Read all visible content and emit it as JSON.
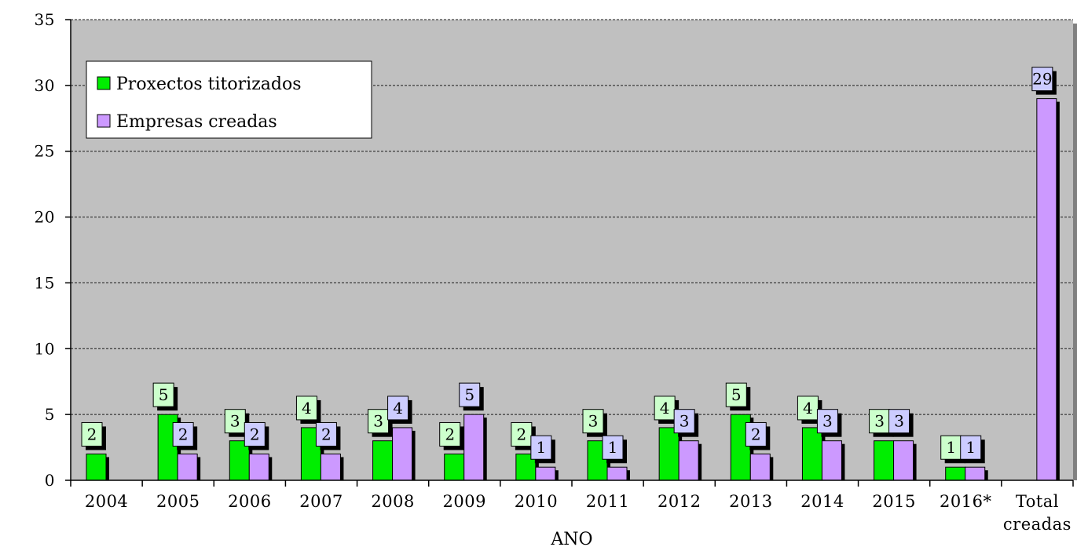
{
  "chart_data": {
    "type": "bar",
    "categories": [
      [
        "2004"
      ],
      [
        "2005"
      ],
      [
        "2006"
      ],
      [
        "2007"
      ],
      [
        "2008"
      ],
      [
        "2009"
      ],
      [
        "2010"
      ],
      [
        "2011"
      ],
      [
        "2012"
      ],
      [
        "2013"
      ],
      [
        "2014"
      ],
      [
        "2015"
      ],
      [
        "2016*"
      ],
      [
        "Total",
        "creadas"
      ]
    ],
    "series": [
      {
        "name": "Proxectos titorizados",
        "color": "#00ee00",
        "label_bg": "#ccffcc",
        "values": [
          2,
          5,
          3,
          4,
          3,
          2,
          2,
          3,
          4,
          5,
          4,
          3,
          1,
          null
        ]
      },
      {
        "name": "Empresas creadas",
        "color": "#cc99ff",
        "label_bg": "#ccccff",
        "values": [
          null,
          2,
          2,
          2,
          4,
          5,
          1,
          1,
          3,
          2,
          3,
          3,
          1,
          29
        ]
      }
    ],
    "xlabel": "ANO",
    "ylabel": "",
    "ylim": [
      0,
      35
    ],
    "yticks": [
      0,
      5,
      10,
      15,
      20,
      25,
      30,
      35
    ],
    "grid": "horizontal-dashed",
    "plot_background": "#c0c0c0",
    "legend_position": "top-left"
  }
}
